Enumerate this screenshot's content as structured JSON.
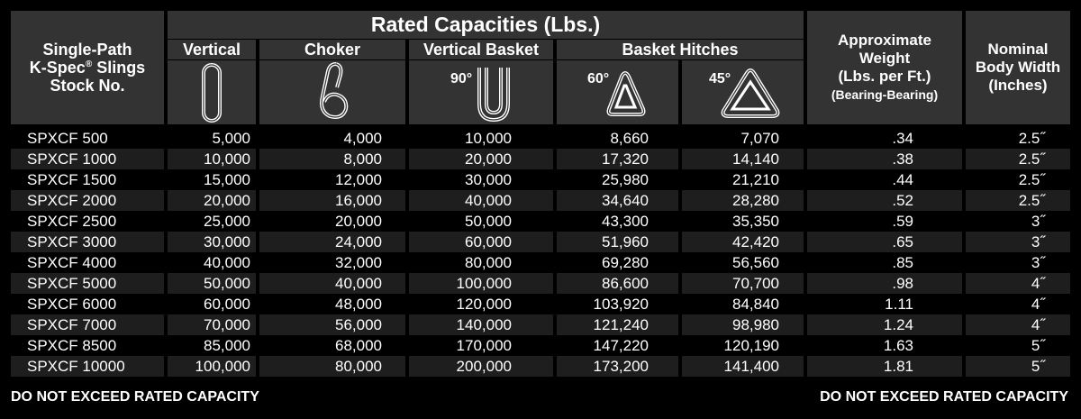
{
  "header": {
    "stock_line1": "Single-Path",
    "stock_line2": "K-Spec",
    "stock_reg": "®",
    "stock_line2b": " Slings",
    "stock_line3": "Stock No.",
    "rated_title": "Rated Capacities (Lbs.)",
    "vertical": "Vertical",
    "choker": "Choker",
    "vertical_basket": "Vertical Basket",
    "basket_hitches": "Basket Hitches",
    "deg90": "90°",
    "deg60": "60°",
    "deg45": "45°",
    "weight_line1": "Approximate",
    "weight_line2": "Weight",
    "weight_line3": "(Lbs. per Ft.)",
    "weight_line4": "(Bearing-Bearing)",
    "width_line1": "Nominal",
    "width_line2": "Body Width",
    "width_line3": "(Inches)"
  },
  "rows": [
    {
      "stock": "SPXCF 500",
      "vertical": "5,000",
      "choker": "4,000",
      "vbasket": "10,000",
      "b60": "8,660",
      "b45": "7,070",
      "weight": ".34",
      "width": "2.5˝"
    },
    {
      "stock": "SPXCF 1000",
      "vertical": "10,000",
      "choker": "8,000",
      "vbasket": "20,000",
      "b60": "17,320",
      "b45": "14,140",
      "weight": ".38",
      "width": "2.5˝"
    },
    {
      "stock": "SPXCF 1500",
      "vertical": "15,000",
      "choker": "12,000",
      "vbasket": "30,000",
      "b60": "25,980",
      "b45": "21,210",
      "weight": ".44",
      "width": "2.5˝"
    },
    {
      "stock": "SPXCF 2000",
      "vertical": "20,000",
      "choker": "16,000",
      "vbasket": "40,000",
      "b60": "34,640",
      "b45": "28,280",
      "weight": ".52",
      "width": "2.5˝"
    },
    {
      "stock": "SPXCF 2500",
      "vertical": "25,000",
      "choker": "20,000",
      "vbasket": "50,000",
      "b60": "43,300",
      "b45": "35,350",
      "weight": ".59",
      "width": "3˝"
    },
    {
      "stock": "SPXCF 3000",
      "vertical": "30,000",
      "choker": "24,000",
      "vbasket": "60,000",
      "b60": "51,960",
      "b45": "42,420",
      "weight": ".65",
      "width": "3˝"
    },
    {
      "stock": "SPXCF 4000",
      "vertical": "40,000",
      "choker": "32,000",
      "vbasket": "80,000",
      "b60": "69,280",
      "b45": "56,560",
      "weight": ".85",
      "width": "3˝"
    },
    {
      "stock": "SPXCF 5000",
      "vertical": "50,000",
      "choker": "40,000",
      "vbasket": "100,000",
      "b60": "86,600",
      "b45": "70,700",
      "weight": ".98",
      "width": "4˝"
    },
    {
      "stock": "SPXCF 6000",
      "vertical": "60,000",
      "choker": "48,000",
      "vbasket": "120,000",
      "b60": "103,920",
      "b45": "84,840",
      "weight": "1.11",
      "width": "4˝"
    },
    {
      "stock": "SPXCF 7000",
      "vertical": "70,000",
      "choker": "56,000",
      "vbasket": "140,000",
      "b60": "121,240",
      "b45": "98,980",
      "weight": "1.24",
      "width": "4˝"
    },
    {
      "stock": "SPXCF 8500",
      "vertical": "85,000",
      "choker": "68,000",
      "vbasket": "170,000",
      "b60": "147,220",
      "b45": "120,190",
      "weight": "1.63",
      "width": "5˝"
    },
    {
      "stock": "SPXCF 10000",
      "vertical": "100,000",
      "choker": "80,000",
      "vbasket": "200,000",
      "b60": "173,200",
      "b45": "141,400",
      "weight": "1.81",
      "width": "5˝"
    }
  ],
  "footer": {
    "left": "DO NOT EXCEED RATED CAPACITY",
    "right": "DO NOT EXCEED RATED CAPACITY"
  },
  "colors": {
    "header_bg": "#333333",
    "row_alt": "#1e1e1e",
    "background": "#000000",
    "text": "#ffffff"
  },
  "icons": [
    "vertical-hitch-icon",
    "choker-hitch-icon",
    "vertical-basket-hitch-icon",
    "basket-60-hitch-icon",
    "basket-45-hitch-icon"
  ]
}
